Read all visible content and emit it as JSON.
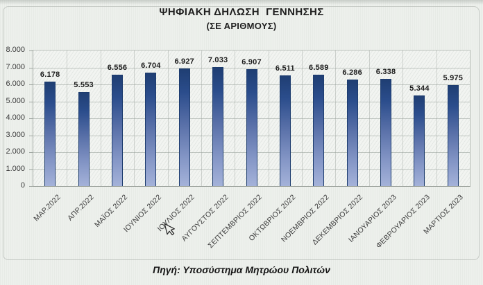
{
  "page": {
    "title": "ΨΗΦΙΑΚΗ ΔΗΛΩΣΗ  ΓΕΝΝΗΣΗΣ",
    "subtitle": "(ΣΕ ΑΡΙΘΜΟΥΣ)",
    "source": "Πηγή: Υποσύστημα Μητρώου Πολιτών"
  },
  "icons": {
    "mouse_cursor": "arrow-pointer"
  },
  "colors": {
    "bar_top": "#1f3e73",
    "bar_bottom": "#a4b2d9",
    "bar_border": "#1d3c6e",
    "grid": "#969e98",
    "background": "#edf0ec"
  },
  "chart_data": {
    "type": "bar",
    "title": "ΨΗΦΙΑΚΗ ΔΗΛΩΣΗ ΓΕΝΝΗΣΗΣ",
    "subtitle": "(ΣΕ ΑΡΙΘΜΟΥΣ)",
    "categories": [
      "ΜΑΡ.2022",
      "ΑΠΡ.2022",
      "ΜΑΪΟΣ 2022",
      "ΙΟΥΝΙΟΣ 2022",
      "ΙΟΥΛΙΟΣ 2022",
      "ΑΥΓΟΥΣΤΟΣ 2022",
      "ΣΕΠΤΕΜΒΡΙΟΣ 2022",
      "ΟΚΤΩΒΡΙΟΣ 2022",
      "ΝΟΕΜΒΡΙΟΣ 2022",
      "ΔΕΚΕΜΒΡΙΟΣ 2022",
      "ΙΑΝΟΥΑΡΙΟΣ 2023",
      "ΦΕΒΡΟΥΑΡΙΟΣ 2023",
      "ΜΑΡΤΙΟΣ 2023"
    ],
    "values": [
      6178,
      5553,
      6556,
      6704,
      6927,
      7033,
      6907,
      6511,
      6589,
      6286,
      6338,
      5344,
      5975
    ],
    "value_labels": [
      "6.178",
      "5.553",
      "6.556",
      "6.704",
      "6.927",
      "7.033",
      "6.907",
      "6.511",
      "6.589",
      "6.286",
      "6.338",
      "5.344",
      "5.975"
    ],
    "xlabel": "",
    "ylabel": "",
    "y_axis": {
      "min": 0,
      "max": 8000,
      "step": 1000,
      "tick_labels": [
        "0",
        "1.000",
        "2.000",
        "3.000",
        "4.000",
        "5.000",
        "6.000",
        "7.000",
        "8.000"
      ]
    },
    "grid": true,
    "legend": false,
    "data_labels": true,
    "source_caption": "Πηγή: Υποσύστημα Μητρώου Πολιτών"
  }
}
